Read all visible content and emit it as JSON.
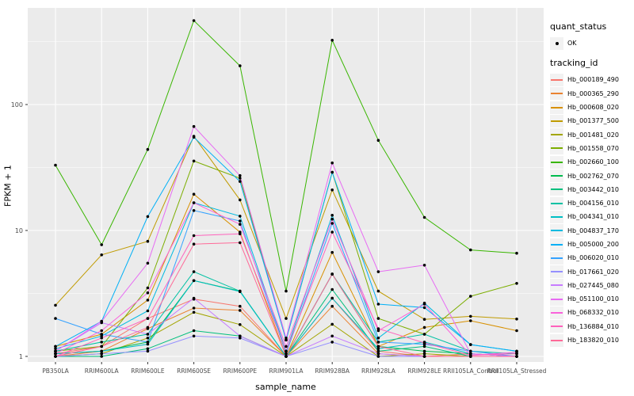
{
  "chart": {
    "y_axis_title": "FPKM + 1",
    "x_axis_title": "sample_name",
    "legend": {
      "quant_status_title": "quant_status",
      "quant_status_items": [
        {
          "label": "OK",
          "marker": "black-point"
        }
      ],
      "tracking_id_title": "tracking_id"
    }
  },
  "chart_data": {
    "type": "line",
    "title": "",
    "xlabel": "sample_name",
    "ylabel": "FPKM + 1",
    "y_scale": "log10",
    "ylim": [
      0.9,
      580
    ],
    "y_ticks": [
      1,
      10,
      100
    ],
    "y_minor_gridlines": [
      3.162,
      31.62,
      316.2
    ],
    "grid": "on",
    "legend_position": "right",
    "panel_background": "#EBEBEB",
    "gridline_color": "#FFFFFF",
    "point_color": "#000000",
    "axis_text_color": "#4D4D4D",
    "categories": [
      "PB350LA",
      "RRIM600LA",
      "RRIM600LE",
      "RRIM600SE",
      "RRIM600PE",
      "RRIM901LA",
      "RRIM928BA",
      "RRIM928LA",
      "RRIM928LE",
      "RRII105LA_Control",
      "RRII105LA_Stressed"
    ],
    "series": [
      {
        "name": "Hb_000189_490",
        "color": "#F8766D",
        "values": [
          1.05,
          1.2,
          2.0,
          2.85,
          2.5,
          1.0,
          2.9,
          1.1,
          1.0,
          1.05,
          1.0
        ]
      },
      {
        "name": "Hb_000365_290",
        "color": "#EA8331",
        "values": [
          1.0,
          1.1,
          1.66,
          2.42,
          2.32,
          1.0,
          2.5,
          1.05,
          1.0,
          1.0,
          1.0
        ]
      },
      {
        "name": "Hb_000608_020",
        "color": "#D89000",
        "values": [
          1.2,
          1.5,
          2.8,
          19.4,
          9.7,
          1.0,
          6.7,
          1.2,
          1.7,
          1.92,
          1.6
        ]
      },
      {
        "name": "Hb_001377_500",
        "color": "#C09B00",
        "values": [
          2.55,
          6.4,
          8.2,
          56,
          17.5,
          2.0,
          21,
          3.3,
          1.97,
          2.08,
          1.98
        ]
      },
      {
        "name": "Hb_001481_020",
        "color": "#A3A500",
        "values": [
          1.0,
          1.05,
          1.4,
          2.24,
          1.79,
          1.0,
          1.8,
          1.0,
          1.05,
          1.0,
          1.0
        ]
      },
      {
        "name": "Hb_001558_070",
        "color": "#7CAE00",
        "values": [
          1.1,
          1.2,
          3.5,
          35.6,
          26,
          1.35,
          29,
          2.0,
          1.5,
          3.0,
          3.8
        ]
      },
      {
        "name": "Hb_002660_100",
        "color": "#39B600",
        "values": [
          33,
          7.7,
          44,
          464,
          203,
          3.3,
          324,
          52,
          12.7,
          7.0,
          6.6
        ]
      },
      {
        "name": "Hb_002762_070",
        "color": "#00BB4E",
        "values": [
          1.05,
          1.1,
          1.3,
          4.0,
          3.3,
          1.0,
          4.5,
          1.2,
          1.1,
          1.05,
          1.0
        ]
      },
      {
        "name": "Hb_003442_010",
        "color": "#00BF7D",
        "values": [
          1.0,
          1.0,
          1.15,
          1.6,
          1.45,
          1.0,
          3.4,
          1.1,
          1.2,
          1.0,
          1.0
        ]
      },
      {
        "name": "Hb_004156_010",
        "color": "#00C1A3",
        "values": [
          1.1,
          1.3,
          1.5,
          4.7,
          3.3,
          1.0,
          4.5,
          1.3,
          1.5,
          1.1,
          1.05
        ]
      },
      {
        "name": "Hb_004341_010",
        "color": "#00BFC4",
        "values": [
          1.05,
          1.1,
          1.25,
          4.0,
          3.27,
          1.0,
          2.9,
          1.15,
          1.3,
          1.05,
          1.0
        ]
      },
      {
        "name": "Hb_004837_170",
        "color": "#00BAE0",
        "values": [
          1.15,
          1.45,
          2.3,
          16.6,
          13.0,
          1.1,
          13.2,
          1.4,
          2.65,
          1.24,
          1.1
        ]
      },
      {
        "name": "Hb_005000_200",
        "color": "#00B0F6",
        "values": [
          1.2,
          1.9,
          12.9,
          55,
          24.5,
          1.35,
          29,
          2.6,
          2.44,
          1.24,
          1.1
        ]
      },
      {
        "name": "Hb_006020_010",
        "color": "#35A2FF",
        "values": [
          2.0,
          1.5,
          1.3,
          14.4,
          11.9,
          1.05,
          11.4,
          1.3,
          1.25,
          1.1,
          1.0
        ]
      },
      {
        "name": "Hb_017661_020",
        "color": "#9590FF",
        "values": [
          1.0,
          1.05,
          1.1,
          1.45,
          1.4,
          1.0,
          1.3,
          1.0,
          1.0,
          1.0,
          1.0
        ]
      },
      {
        "name": "Hb_027445_080",
        "color": "#C77CFF",
        "values": [
          1.1,
          1.85,
          1.5,
          2.9,
          1.45,
          1.0,
          1.45,
          1.05,
          1.0,
          1.0,
          1.0
        ]
      },
      {
        "name": "Hb_051100_010",
        "color": "#E76BF3",
        "values": [
          1.1,
          1.9,
          5.5,
          67,
          27.3,
          1.4,
          34.4,
          4.7,
          5.3,
          1.05,
          1.0
        ]
      },
      {
        "name": "Hb_068332_010",
        "color": "#FA62DB",
        "values": [
          1.05,
          1.6,
          3.2,
          16.6,
          11.2,
          1.2,
          12.3,
          1.6,
          2.6,
          1.02,
          1.08
        ]
      },
      {
        "name": "Hb_136884_010",
        "color": "#FF62BC",
        "values": [
          1.0,
          1.4,
          2.0,
          9.1,
          9.4,
          1.1,
          9.7,
          1.66,
          1.28,
          1.02,
          1.05
        ]
      },
      {
        "name": "Hb_183820_010",
        "color": "#FF6A98",
        "values": [
          1.0,
          1.2,
          1.7,
          7.8,
          8.0,
          1.0,
          4.5,
          1.2,
          1.0,
          1.0,
          1.0
        ]
      }
    ]
  }
}
